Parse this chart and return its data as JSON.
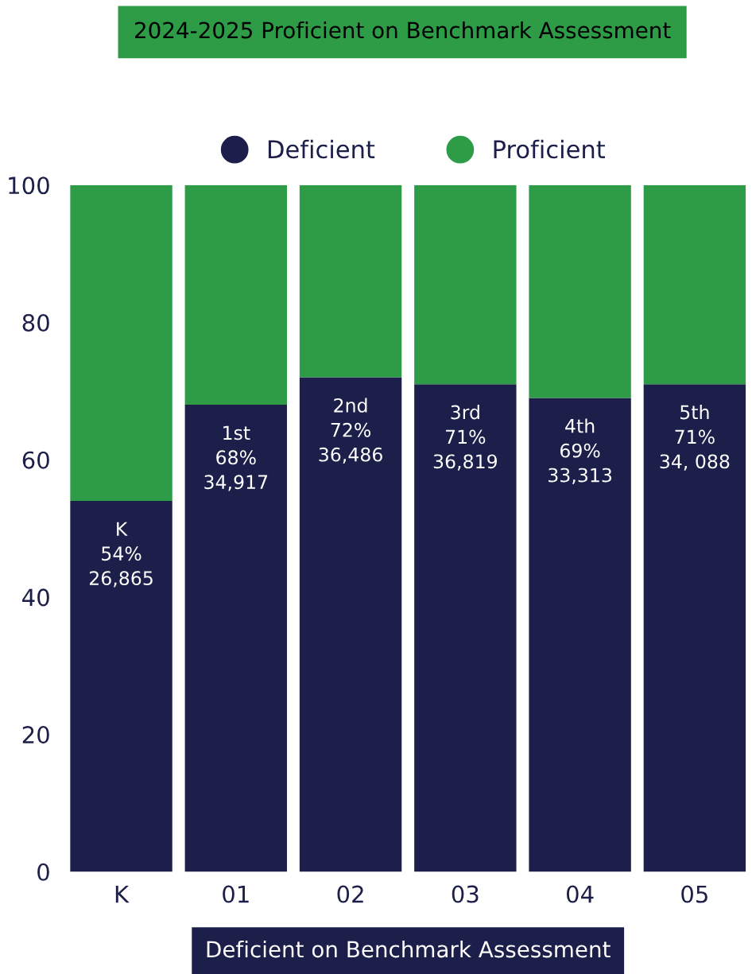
{
  "chart_data": {
    "type": "bar",
    "title": "2024-2025 Proficient on Benchmark Assessment",
    "xlabel": "Deficient on Benchmark Assessment",
    "categories": [
      "K",
      "01",
      "02",
      "03",
      "04",
      "05"
    ],
    "stacked": true,
    "series": [
      {
        "name": "Deficient",
        "color": "#1c1f4a",
        "values": [
          54,
          68,
          72,
          71,
          69,
          71
        ],
        "value_labels": [
          "K\n54%\n26,865",
          "1st\n68%\n34,917",
          "2nd\n72%\n36,486",
          "3rd\n71%\n36,819",
          "4th\n69%\n33,313",
          "5th\n71%\n34, 088"
        ]
      },
      {
        "name": "Proficient",
        "color": "#2e9b47",
        "values": [
          46,
          32,
          28,
          29,
          31,
          29
        ]
      }
    ],
    "ylim": [
      0,
      100
    ],
    "yticks": [
      0,
      20,
      40,
      60,
      80,
      100
    ],
    "grid": false,
    "legend": "top",
    "marker": "circle"
  }
}
